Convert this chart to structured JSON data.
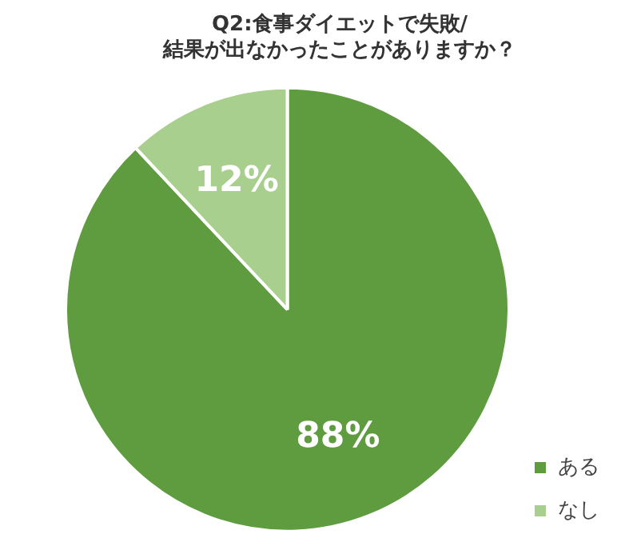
{
  "chart_data": {
    "type": "pie",
    "title": "Q2:食事ダイエットで失敗/\n結果が出なかったことがありますか？",
    "categories": [
      "ある",
      "なし"
    ],
    "values": [
      88,
      12
    ],
    "colors": [
      "#5f9b3f",
      "#a8cf8d"
    ],
    "value_labels": [
      "88%",
      "12%"
    ],
    "legend": "bottom right"
  }
}
